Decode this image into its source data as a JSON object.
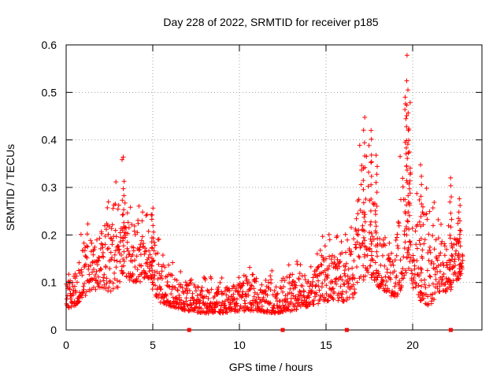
{
  "chart_data": {
    "type": "scatter",
    "title": "Day 228 of 2022, SRMTID for receiver p185",
    "xlabel": "GPS time / hours",
    "ylabel": "SRMTID / TECUs",
    "xlim": [
      0,
      24
    ],
    "ylim": [
      0,
      0.6
    ],
    "xticks": [
      0,
      5,
      10,
      15,
      20
    ],
    "xtick_labels": [
      "0",
      "5",
      "10",
      "15",
      "20"
    ],
    "yticks": [
      0,
      0.1,
      0.2,
      0.3,
      0.4,
      0.5,
      0.6
    ],
    "ytick_labels": [
      "0",
      "0.1",
      "0.2",
      "0.3",
      "0.4",
      "0.5",
      "0.6"
    ],
    "grid": true,
    "marker": "+",
    "color": "#ff0000",
    "baseline_markers_x": [
      7.1,
      12.5,
      16.2,
      22.2
    ],
    "series": [
      {
        "name": "SRMTID",
        "envelope": [
          [
            0.0,
            0.045,
            0.1
          ],
          [
            0.5,
            0.05,
            0.11
          ],
          [
            1.0,
            0.07,
            0.2
          ],
          [
            1.5,
            0.08,
            0.17
          ],
          [
            2.0,
            0.09,
            0.21
          ],
          [
            2.5,
            0.08,
            0.24
          ],
          [
            3.0,
            0.09,
            0.26
          ],
          [
            3.3,
            0.12,
            0.3
          ],
          [
            3.8,
            0.1,
            0.24
          ],
          [
            4.3,
            0.1,
            0.22
          ],
          [
            4.8,
            0.11,
            0.23
          ],
          [
            5.3,
            0.06,
            0.16
          ],
          [
            6.0,
            0.05,
            0.12
          ],
          [
            7.0,
            0.04,
            0.1
          ],
          [
            8.0,
            0.035,
            0.09
          ],
          [
            9.0,
            0.035,
            0.09
          ],
          [
            10.0,
            0.04,
            0.1
          ],
          [
            11.0,
            0.04,
            0.11
          ],
          [
            12.0,
            0.035,
            0.1
          ],
          [
            13.0,
            0.04,
            0.12
          ],
          [
            14.0,
            0.05,
            0.12
          ],
          [
            15.0,
            0.06,
            0.17
          ],
          [
            16.0,
            0.06,
            0.16
          ],
          [
            16.7,
            0.07,
            0.2
          ],
          [
            17.0,
            0.1,
            0.38
          ],
          [
            17.5,
            0.12,
            0.35
          ],
          [
            18.0,
            0.09,
            0.2
          ],
          [
            18.5,
            0.08,
            0.16
          ],
          [
            19.0,
            0.06,
            0.15
          ],
          [
            19.5,
            0.1,
            0.4
          ],
          [
            19.7,
            0.15,
            0.5
          ],
          [
            20.0,
            0.09,
            0.22
          ],
          [
            20.5,
            0.06,
            0.28
          ],
          [
            21.0,
            0.05,
            0.22
          ],
          [
            21.5,
            0.08,
            0.2
          ],
          [
            22.0,
            0.08,
            0.17
          ],
          [
            22.5,
            0.1,
            0.26
          ],
          [
            22.9,
            0.11,
            0.2
          ]
        ],
        "spikes": [
          [
            3.3,
            0.315
          ],
          [
            5.0,
            0.26
          ],
          [
            17.2,
            0.45
          ],
          [
            17.6,
            0.42
          ],
          [
            17.9,
            0.37
          ],
          [
            19.6,
            0.525
          ],
          [
            19.7,
            0.505
          ],
          [
            19.8,
            0.48
          ],
          [
            20.5,
            0.35
          ],
          [
            22.2,
            0.32
          ],
          [
            22.7,
            0.28
          ]
        ]
      }
    ]
  }
}
